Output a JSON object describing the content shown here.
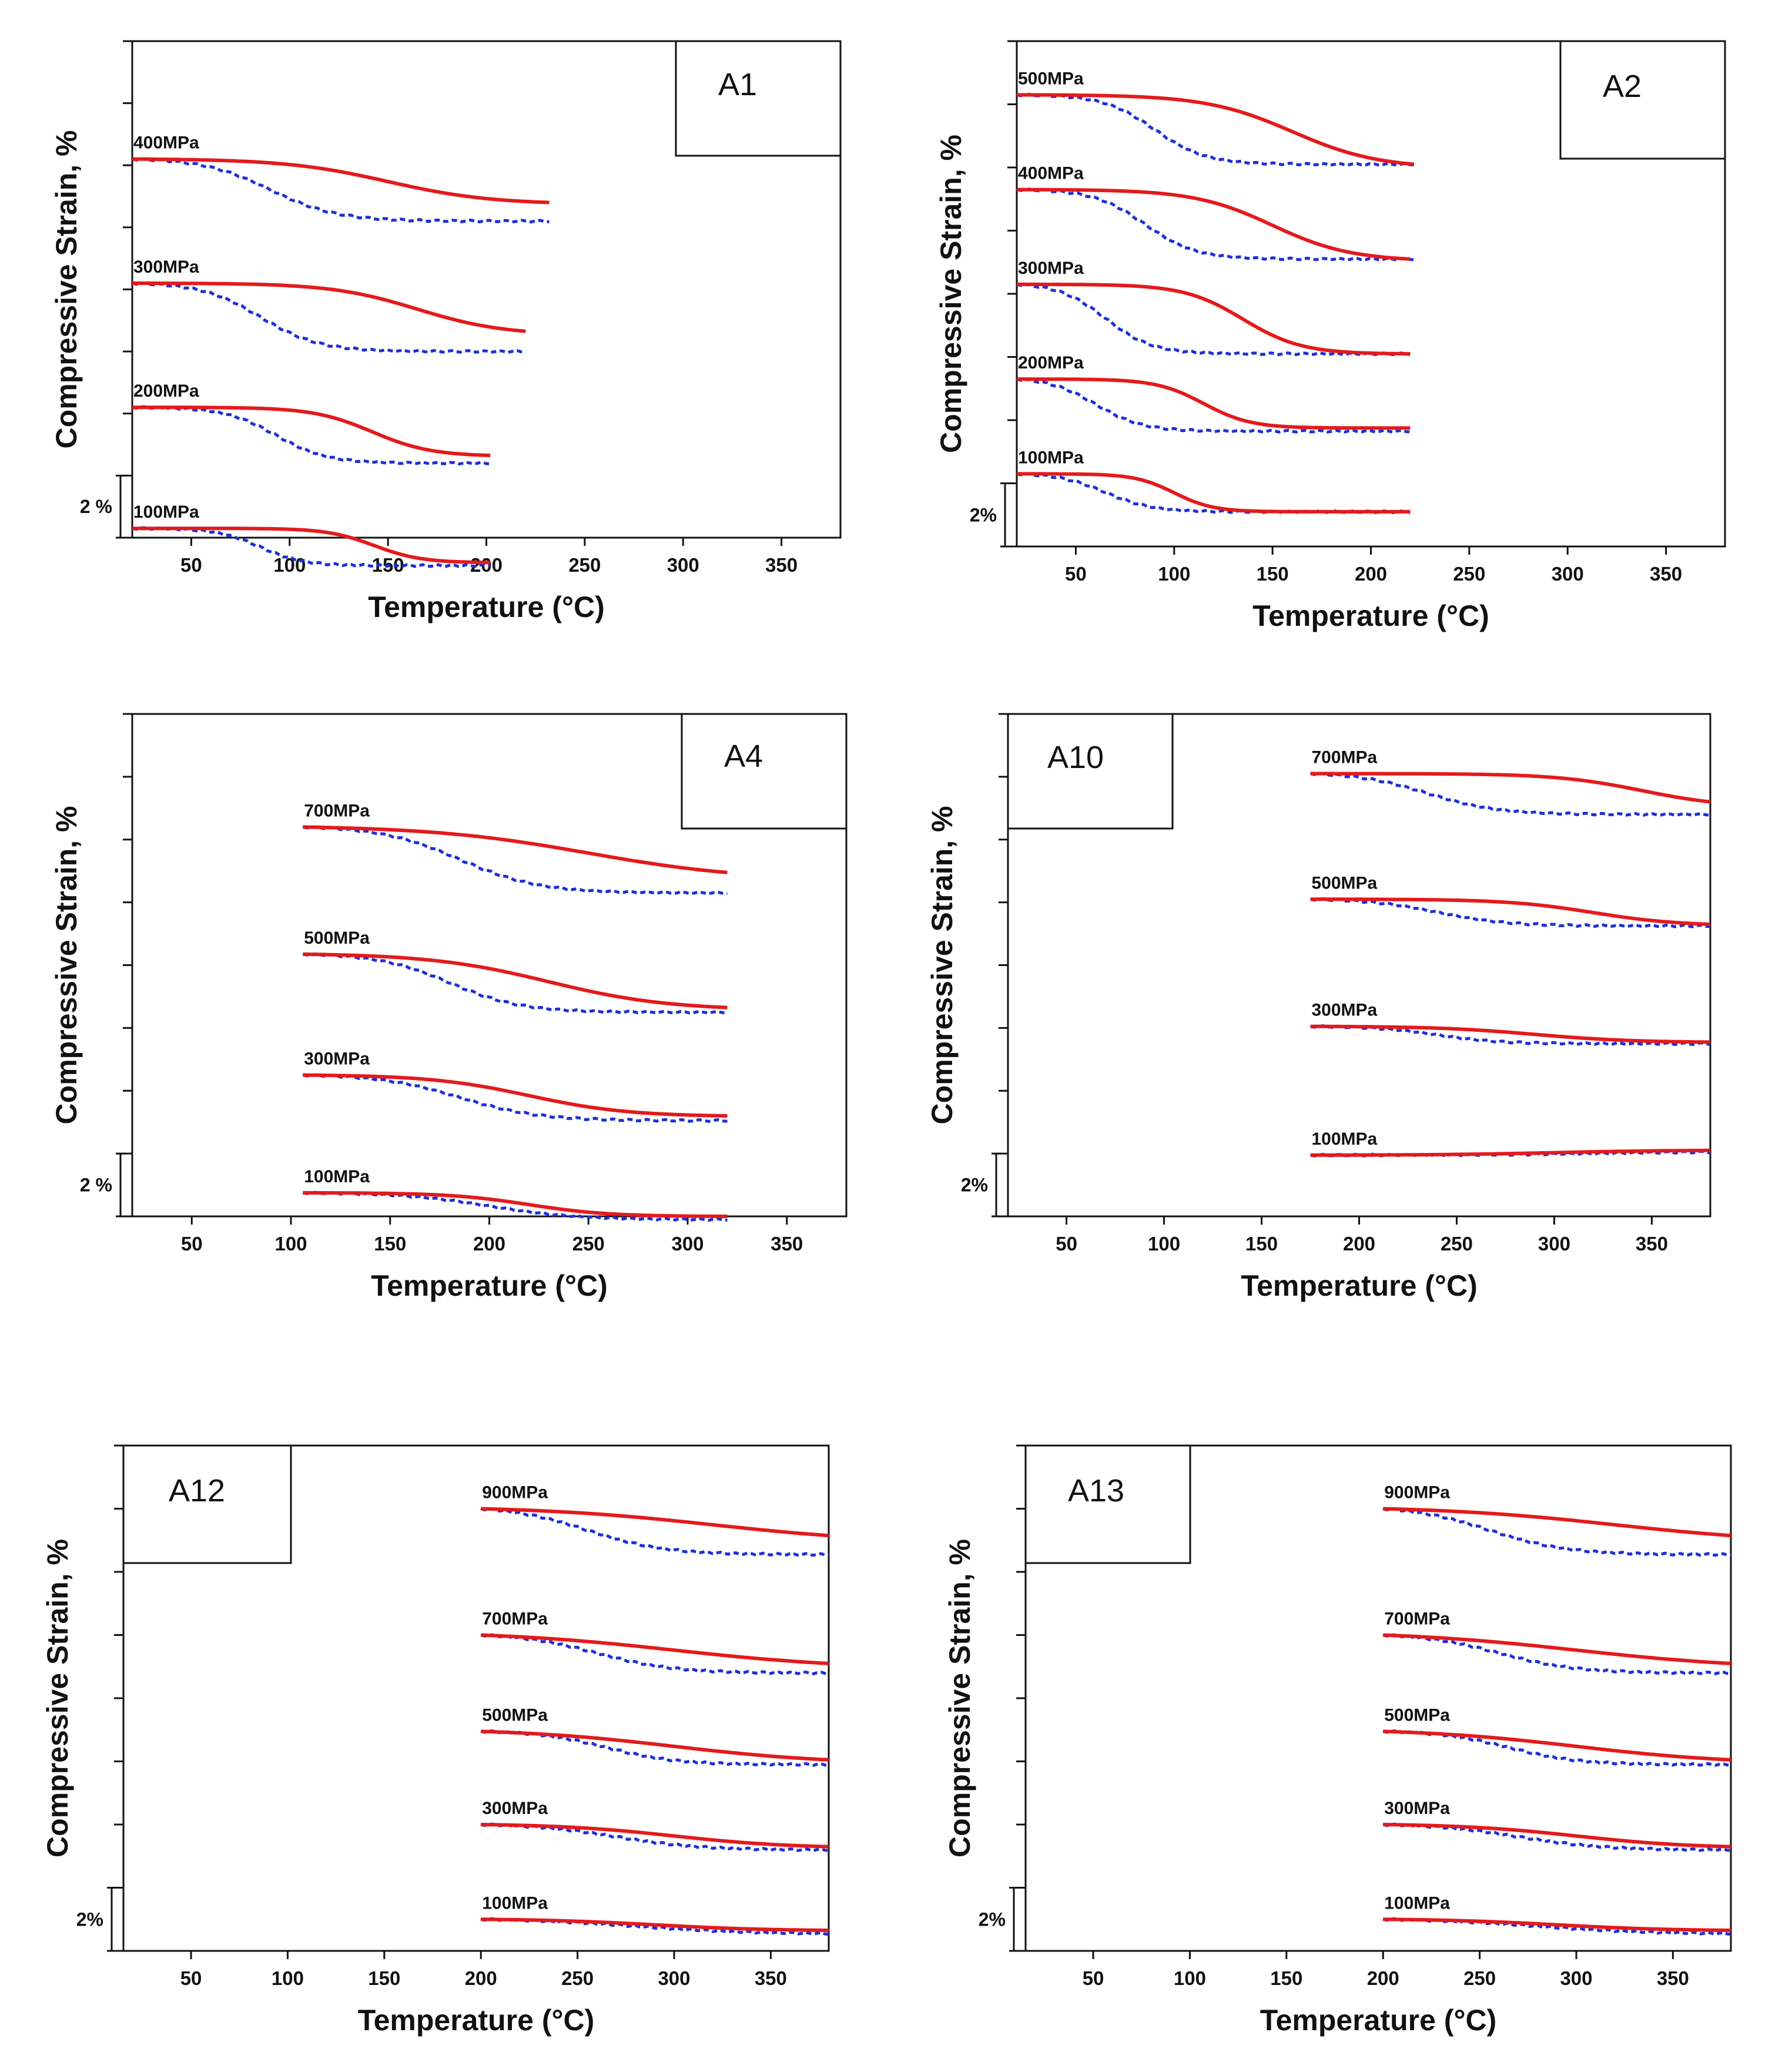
{
  "colors": {
    "sample_a": "#e41a1c",
    "sample_b": "#1f2fd6",
    "frame": "#111111"
  },
  "chart_data": [
    {
      "type": "line",
      "panel": "A1",
      "xlabel": "Temperature (°C)",
      "ylabel": "Compressive Strain, %",
      "xlim": [
        20,
        380
      ],
      "x_ticks": [
        50,
        100,
        150,
        200,
        250,
        300,
        350
      ],
      "y_ticks_count": 8,
      "strain_step_pct": 2,
      "scale_bar": {
        "label": "2 %",
        "value_pct": 2
      },
      "curves": [
        {
          "label": "400MPa",
          "offset_pct": 12.2,
          "red": {
            "x_start": 20,
            "x_end": 232,
            "mid": 150,
            "width": 26,
            "drop": 1.4
          },
          "blue": {
            "x_start": 20,
            "x_end": 232,
            "mid": 90,
            "width": 17,
            "drop": 2.0
          }
        },
        {
          "label": "300MPa",
          "offset_pct": 8.2,
          "red": {
            "x_start": 20,
            "x_end": 220,
            "mid": 165,
            "width": 22,
            "drop": 1.55
          },
          "blue": {
            "x_start": 20,
            "x_end": 220,
            "mid": 85,
            "width": 15,
            "drop": 2.2
          }
        },
        {
          "label": "200MPa",
          "offset_pct": 4.2,
          "red": {
            "x_start": 20,
            "x_end": 202,
            "mid": 142,
            "width": 15,
            "drop": 1.55
          },
          "blue": {
            "x_start": 20,
            "x_end": 202,
            "mid": 93,
            "width": 13,
            "drop": 1.8
          }
        },
        {
          "label": "100MPa",
          "offset_pct": 0.3,
          "red": {
            "x_start": 20,
            "x_end": 202,
            "mid": 143,
            "width": 12,
            "drop": 1.1
          },
          "blue": {
            "x_start": 20,
            "x_end": 202,
            "mid": 85,
            "width": 11,
            "drop": 1.2
          }
        }
      ]
    },
    {
      "type": "line",
      "panel": "A2",
      "xlabel": "Temperature (°C)",
      "ylabel": "Compressive Strain, %",
      "xlim": [
        20,
        380
      ],
      "x_ticks": [
        50,
        100,
        150,
        200,
        250,
        300,
        350
      ],
      "y_ticks_count": 8,
      "strain_step_pct": 2,
      "scale_bar": {
        "label": "2%",
        "value_pct": 2
      },
      "curves": [
        {
          "label": "500MPa",
          "offset_pct": 14.3,
          "red": {
            "x_start": 20,
            "x_end": 222,
            "mid": 160,
            "width": 22,
            "drop": 2.2
          },
          "blue": {
            "x_start": 20,
            "x_end": 222,
            "mid": 90,
            "width": 13,
            "drop": 2.2
          }
        },
        {
          "label": "400MPa",
          "offset_pct": 11.3,
          "red": {
            "x_start": 20,
            "x_end": 220,
            "mid": 150,
            "width": 20,
            "drop": 2.2
          },
          "blue": {
            "x_start": 20,
            "x_end": 222,
            "mid": 85,
            "width": 13,
            "drop": 2.2
          }
        },
        {
          "label": "300MPa",
          "offset_pct": 8.3,
          "red": {
            "x_start": 20,
            "x_end": 220,
            "mid": 135,
            "width": 15,
            "drop": 2.2
          },
          "blue": {
            "x_start": 20,
            "x_end": 220,
            "mid": 65,
            "width": 12,
            "drop": 2.2
          }
        },
        {
          "label": "200MPa",
          "offset_pct": 5.3,
          "red": {
            "x_start": 20,
            "x_end": 220,
            "mid": 115,
            "width": 12,
            "drop": 1.55
          },
          "blue": {
            "x_start": 20,
            "x_end": 220,
            "mid": 60,
            "width": 12,
            "drop": 1.65
          }
        },
        {
          "label": "100MPa",
          "offset_pct": 2.3,
          "red": {
            "x_start": 20,
            "x_end": 220,
            "mid": 100,
            "width": 10,
            "drop": 1.2
          },
          "blue": {
            "x_start": 20,
            "x_end": 220,
            "mid": 65,
            "width": 12,
            "drop": 1.2
          }
        }
      ]
    },
    {
      "type": "line",
      "panel": "A4",
      "xlabel": "Temperature (°C)",
      "ylabel": "Compressive Strain, %",
      "xlim": [
        20,
        380
      ],
      "x_ticks": [
        50,
        100,
        150,
        200,
        250,
        300,
        350
      ],
      "y_ticks_count": 8,
      "strain_step_pct": 2,
      "scale_bar": {
        "label": "2 %",
        "value_pct": 2
      },
      "curves": [
        {
          "label": "700MPa",
          "offset_pct": 12.4,
          "red": {
            "x_start": 106,
            "x_end": 320,
            "mid": 250,
            "width": 40,
            "drop": 1.45
          },
          "blue": {
            "x_start": 106,
            "x_end": 320,
            "mid": 185,
            "width": 20,
            "drop": 2.1
          }
        },
        {
          "label": "500MPa",
          "offset_pct": 8.35,
          "red": {
            "x_start": 106,
            "x_end": 320,
            "mid": 230,
            "width": 30,
            "drop": 1.7
          },
          "blue": {
            "x_start": 106,
            "x_end": 320,
            "mid": 180,
            "width": 18,
            "drop": 1.85
          }
        },
        {
          "label": "300MPa",
          "offset_pct": 4.5,
          "red": {
            "x_start": 106,
            "x_end": 320,
            "mid": 220,
            "width": 25,
            "drop": 1.3
          },
          "blue": {
            "x_start": 106,
            "x_end": 320,
            "mid": 185,
            "width": 20,
            "drop": 1.45
          }
        },
        {
          "label": "100MPa",
          "offset_pct": 0.75,
          "red": {
            "x_start": 106,
            "x_end": 320,
            "mid": 220,
            "width": 20,
            "drop": 0.75
          },
          "blue": {
            "x_start": 106,
            "x_end": 320,
            "mid": 200,
            "width": 22,
            "drop": 0.85
          }
        }
      ]
    },
    {
      "type": "line",
      "panel": "A10",
      "xlabel": "Temperature (°C)",
      "ylabel": "Compressive Strain, %",
      "xlim": [
        20,
        380
      ],
      "x_ticks": [
        50,
        100,
        150,
        200,
        250,
        300,
        350
      ],
      "y_ticks_count": 8,
      "strain_step_pct": 2,
      "scale_bar": {
        "label": "2%",
        "value_pct": 2
      },
      "curves": [
        {
          "label": "700MPa",
          "offset_pct": 14.1,
          "red": {
            "x_start": 175,
            "x_end": 380,
            "mid": 345,
            "width": 22,
            "drop": 0.9
          },
          "blue": {
            "x_start": 175,
            "x_end": 380,
            "mid": 235,
            "width": 18,
            "drop": 1.3
          }
        },
        {
          "label": "500MPa",
          "offset_pct": 10.1,
          "red": {
            "x_start": 175,
            "x_end": 380,
            "mid": 320,
            "width": 22,
            "drop": 0.8
          },
          "blue": {
            "x_start": 175,
            "x_end": 380,
            "mid": 240,
            "width": 18,
            "drop": 0.85
          }
        },
        {
          "label": "300MPa",
          "offset_pct": 6.05,
          "red": {
            "x_start": 175,
            "x_end": 380,
            "mid": 290,
            "width": 25,
            "drop": 0.5
          },
          "blue": {
            "x_start": 175,
            "x_end": 380,
            "mid": 240,
            "width": 16,
            "drop": 0.55
          }
        },
        {
          "label": "100MPa",
          "offset_pct": 1.95,
          "red": {
            "x_start": 175,
            "x_end": 380,
            "mid": 300,
            "width": 30,
            "drop": -0.15
          },
          "blue": {
            "x_start": 175,
            "x_end": 380,
            "mid": 320,
            "width": 30,
            "drop": -0.1
          }
        }
      ]
    },
    {
      "type": "line",
      "panel": "A12",
      "xlabel": "Temperature (°C)",
      "ylabel": "Compressive Strain, %",
      "xlim": [
        15,
        380
      ],
      "x_ticks": [
        50,
        100,
        150,
        200,
        250,
        300,
        350
      ],
      "y_ticks_count": 8,
      "strain_step_pct": 2,
      "scale_bar": {
        "label": "2%",
        "value_pct": 2
      },
      "curves": [
        {
          "label": "900MPa",
          "offset_pct": 14.0,
          "red": {
            "x_start": 200,
            "x_end": 380,
            "mid": 320,
            "width": 45,
            "drop": 0.85
          },
          "blue": {
            "x_start": 200,
            "x_end": 380,
            "mid": 255,
            "width": 20,
            "drop": 1.45
          }
        },
        {
          "label": "700MPa",
          "offset_pct": 10.0,
          "red": {
            "x_start": 200,
            "x_end": 380,
            "mid": 300,
            "width": 45,
            "drop": 0.9
          },
          "blue": {
            "x_start": 200,
            "x_end": 380,
            "mid": 260,
            "width": 20,
            "drop": 1.2
          }
        },
        {
          "label": "500MPa",
          "offset_pct": 6.95,
          "red": {
            "x_start": 200,
            "x_end": 380,
            "mid": 300,
            "width": 40,
            "drop": 0.9
          },
          "blue": {
            "x_start": 200,
            "x_end": 380,
            "mid": 265,
            "width": 18,
            "drop": 1.05
          }
        },
        {
          "label": "300MPa",
          "offset_pct": 4.0,
          "red": {
            "x_start": 200,
            "x_end": 380,
            "mid": 300,
            "width": 30,
            "drop": 0.7
          },
          "blue": {
            "x_start": 200,
            "x_end": 380,
            "mid": 270,
            "width": 22,
            "drop": 0.8
          }
        },
        {
          "label": "100MPa",
          "offset_pct": 1.0,
          "red": {
            "x_start": 200,
            "x_end": 380,
            "mid": 290,
            "width": 30,
            "drop": 0.35
          },
          "blue": {
            "x_start": 200,
            "x_end": 380,
            "mid": 280,
            "width": 30,
            "drop": 0.45
          }
        }
      ]
    },
    {
      "type": "line",
      "panel": "A13",
      "xlabel": "Temperature (°C)",
      "ylabel": "Compressive Strain, %",
      "xlim": [
        15,
        380
      ],
      "x_ticks": [
        50,
        100,
        150,
        200,
        250,
        300,
        350
      ],
      "y_ticks_count": 8,
      "strain_step_pct": 2,
      "scale_bar": {
        "label": "2%",
        "value_pct": 2
      },
      "curves": [
        {
          "label": "900MPa",
          "offset_pct": 14.0,
          "red": {
            "x_start": 200,
            "x_end": 380,
            "mid": 320,
            "width": 45,
            "drop": 0.85
          },
          "blue": {
            "x_start": 200,
            "x_end": 380,
            "mid": 255,
            "width": 20,
            "drop": 1.45
          }
        },
        {
          "label": "700MPa",
          "offset_pct": 10.0,
          "red": {
            "x_start": 200,
            "x_end": 380,
            "mid": 300,
            "width": 45,
            "drop": 0.9
          },
          "blue": {
            "x_start": 200,
            "x_end": 380,
            "mid": 260,
            "width": 20,
            "drop": 1.2
          }
        },
        {
          "label": "500MPa",
          "offset_pct": 6.95,
          "red": {
            "x_start": 200,
            "x_end": 380,
            "mid": 300,
            "width": 40,
            "drop": 0.9
          },
          "blue": {
            "x_start": 200,
            "x_end": 380,
            "mid": 265,
            "width": 18,
            "drop": 1.05
          }
        },
        {
          "label": "300MPa",
          "offset_pct": 4.0,
          "red": {
            "x_start": 200,
            "x_end": 380,
            "mid": 300,
            "width": 30,
            "drop": 0.7
          },
          "blue": {
            "x_start": 200,
            "x_end": 380,
            "mid": 270,
            "width": 22,
            "drop": 0.8
          }
        },
        {
          "label": "100MPa",
          "offset_pct": 1.0,
          "red": {
            "x_start": 200,
            "x_end": 380,
            "mid": 290,
            "width": 30,
            "drop": 0.35
          },
          "blue": {
            "x_start": 200,
            "x_end": 380,
            "mid": 280,
            "width": 30,
            "drop": 0.45
          }
        }
      ]
    }
  ]
}
